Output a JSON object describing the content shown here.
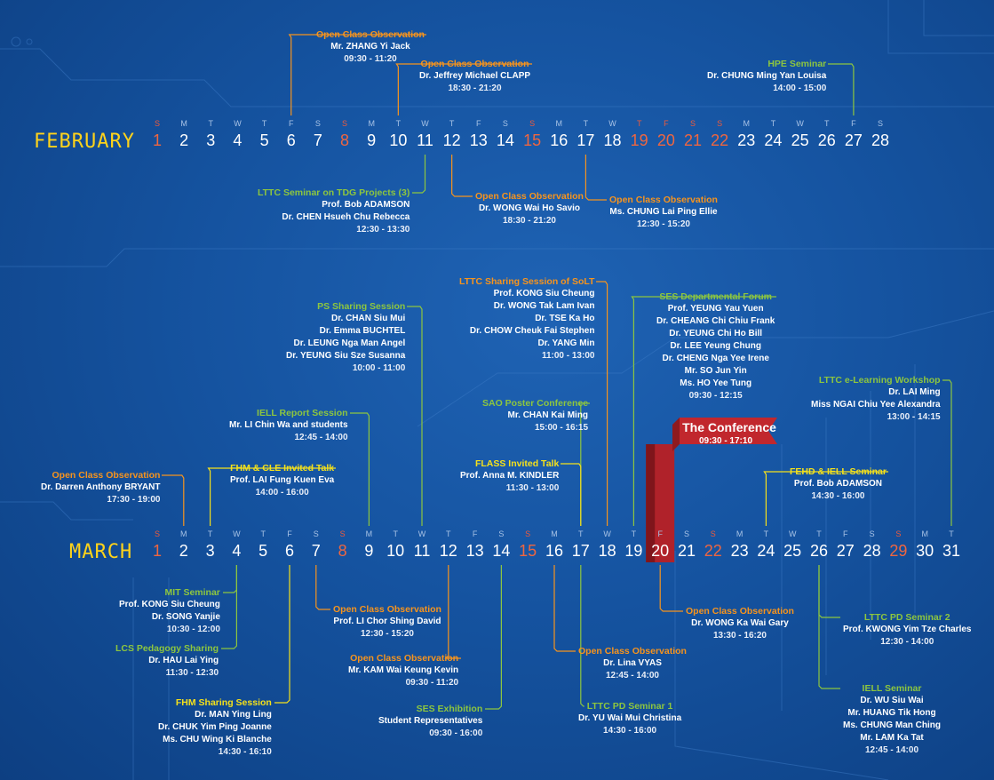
{
  "colors": {
    "orange": "#f7941d",
    "green": "#8dc63f",
    "yellow": "#f5e11b",
    "weekend": "#ef5a3a",
    "conference_red": "#c1272d"
  },
  "months": [
    {
      "name": "FEBRUARY",
      "days": [
        "1",
        "2",
        "3",
        "4",
        "5",
        "6",
        "7",
        "8",
        "9",
        "10",
        "11",
        "12",
        "13",
        "14",
        "15",
        "16",
        "17",
        "18",
        "19",
        "20",
        "21",
        "22",
        "23",
        "24",
        "25",
        "26",
        "27",
        "28"
      ],
      "weekdays": [
        "S",
        "M",
        "T",
        "W",
        "T",
        "F",
        "S",
        "S",
        "M",
        "T",
        "W",
        "T",
        "F",
        "S",
        "S",
        "M",
        "T",
        "W",
        "T",
        "F",
        "S",
        "S",
        "M",
        "T",
        "W",
        "T",
        "F",
        "S"
      ],
      "weekends": [
        1,
        8,
        15,
        19,
        20,
        21,
        22
      ]
    },
    {
      "name": "MARCH",
      "days": [
        "1",
        "2",
        "3",
        "4",
        "5",
        "6",
        "7",
        "8",
        "9",
        "10",
        "11",
        "12",
        "13",
        "14",
        "15",
        "16",
        "17",
        "18",
        "19",
        "20",
        "21",
        "22",
        "23",
        "24",
        "25",
        "26",
        "27",
        "28",
        "29",
        "30",
        "31"
      ],
      "weekdays": [
        "S",
        "M",
        "T",
        "W",
        "T",
        "F",
        "S",
        "S",
        "M",
        "T",
        "W",
        "T",
        "F",
        "S",
        "S",
        "M",
        "T",
        "W",
        "T",
        "F",
        "S",
        "S",
        "M",
        "T",
        "W",
        "T",
        "F",
        "S",
        "S",
        "M",
        "T"
      ],
      "weekends": [
        1,
        8,
        15,
        22,
        29
      ]
    }
  ],
  "conference": {
    "label": "The Conference",
    "time": "09:30 - 17:10",
    "day": "20"
  },
  "events": [
    {
      "id": "feb6",
      "color": "orange",
      "title": "Open Class Observation",
      "people": [
        "Mr. ZHANG Yi Jack"
      ],
      "time": "09:30 - 11:20"
    },
    {
      "id": "feb10",
      "color": "orange",
      "title": "Open Class Observation",
      "people": [
        "Dr. Jeffrey Michael CLAPP"
      ],
      "time": "18:30 - 21:20"
    },
    {
      "id": "feb27",
      "color": "green",
      "title": "HPE Seminar",
      "people": [
        "Dr. CHUNG Ming Yan Louisa"
      ],
      "time": "14:00 - 15:00"
    },
    {
      "id": "feb11",
      "color": "green",
      "title": "LTTC Seminar on TDG Projects (3)",
      "people": [
        "Prof. Bob ADAMSON",
        "Dr. CHEN Hsueh Chu Rebecca"
      ],
      "time": "12:30 - 13:30"
    },
    {
      "id": "feb12",
      "color": "orange",
      "title": "Open Class Observation",
      "people": [
        "Dr. WONG Wai Ho Savio"
      ],
      "time": "18:30 - 21:20"
    },
    {
      "id": "feb17",
      "color": "orange",
      "title": "Open Class Observation",
      "people": [
        "Ms. CHUNG Lai Ping Ellie"
      ],
      "time": "12:30 - 15:20"
    },
    {
      "id": "mar11ps",
      "color": "green",
      "title": "PS Sharing Session",
      "people": [
        "Dr. CHAN Siu Mui",
        "Dr. Emma BUCHTEL",
        "Dr. LEUNG Nga Man Angel",
        "Dr. YEUNG Siu Sze Susanna"
      ],
      "time": "10:00 - 11:00"
    },
    {
      "id": "mar18",
      "color": "orange",
      "title": "LTTC Sharing Session of SoLT",
      "people": [
        "Prof. KONG Siu Cheung",
        "Dr. WONG Tak Lam Ivan",
        "Dr. TSE Ka Ho",
        "Dr. CHOW Cheuk Fai Stephen",
        "Dr. YANG Min"
      ],
      "time": "11:00 - 13:00"
    },
    {
      "id": "mar19",
      "color": "green",
      "title": "SES Departmental Forum",
      "people": [
        "Prof. YEUNG Yau Yuen",
        "Dr. CHEANG Chi Chiu Frank",
        "Dr. YEUNG Chi Ho Bill",
        "Dr. LEE Yeung Chung",
        "Dr. CHENG Nga Yee Irene",
        "Mr. SO Jun Yin",
        "Ms. HO Yee Tung"
      ],
      "time": "09:30 - 12:15"
    },
    {
      "id": "mar31",
      "color": "green",
      "title": "LTTC e-Learning Workshop",
      "people": [
        "Dr. LAI Ming",
        "Miss NGAI Chiu Yee Alexandra"
      ],
      "time": "13:00 - 14:15"
    },
    {
      "id": "mar17sao",
      "color": "green",
      "title": "SAO Poster Conference",
      "people": [
        "Mr. CHAN Kai Ming"
      ],
      "time": "15:00 - 16:15"
    },
    {
      "id": "mar9",
      "color": "green",
      "title": "IELL Report Session",
      "people": [
        "Mr. LI Chin Wa and students"
      ],
      "time": "12:45 - 14:00"
    },
    {
      "id": "mar2",
      "color": "orange",
      "title": "Open Class Observation",
      "people": [
        "Dr. Darren Anthony BRYANT"
      ],
      "time": "17:30 - 19:00"
    },
    {
      "id": "mar3",
      "color": "yellow",
      "title": "FHM & CLE Invited Talk",
      "people": [
        "Prof. LAI Fung Kuen Eva"
      ],
      "time": "14:00 - 16:00"
    },
    {
      "id": "mar17",
      "color": "yellow",
      "title": "FLASS Invited Talk",
      "people": [
        "Prof. Anna M. KINDLER"
      ],
      "time": "11:30 - 13:00"
    },
    {
      "id": "mar24",
      "color": "yellow",
      "title": "FEHD & IELL Seminar",
      "people": [
        "Prof. Bob ADAMSON"
      ],
      "time": "14:30 - 16:00"
    },
    {
      "id": "mar4mit",
      "color": "green",
      "title": "MIT Seminar",
      "people": [
        "Prof. KONG Siu Cheung",
        "Dr. SONG Yanjie"
      ],
      "time": "10:30 - 12:00"
    },
    {
      "id": "mar4lcs",
      "color": "green",
      "title": "LCS Pedagogy Sharing",
      "people": [
        "Dr. HAU Lai Ying"
      ],
      "time": "11:30 - 12:30"
    },
    {
      "id": "mar6",
      "color": "yellow",
      "title": "FHM Sharing Session",
      "people": [
        "Dr. MAN Ying Ling",
        "Dr. CHUK Yim Ping Joanne",
        "Ms. CHU Wing Ki Blanche"
      ],
      "time": "14:30 - 16:10"
    },
    {
      "id": "mar7",
      "color": "orange",
      "title": "Open Class Observation",
      "people": [
        "Prof. LI Chor Shing David"
      ],
      "time": "12:30 - 15:20"
    },
    {
      "id": "mar12",
      "color": "orange",
      "title": "Open Class Observation",
      "people": [
        "Mr. KAM Wai Keung Kevin"
      ],
      "time": "09:30 - 11:20"
    },
    {
      "id": "mar14",
      "color": "green",
      "title": "SES Exhibition",
      "people": [
        "Student Representatives"
      ],
      "time": "09:30 - 16:00"
    },
    {
      "id": "mar16",
      "color": "orange",
      "title": "Open Class Observation",
      "people": [
        "Dr. Lina VYAS"
      ],
      "time": "12:45 - 14:00"
    },
    {
      "id": "mar17pd",
      "color": "green",
      "title": "LTTC PD Seminar 1",
      "people": [
        "Dr. YU Wai Mui Christina"
      ],
      "time": "14:30 - 16:00"
    },
    {
      "id": "mar20",
      "color": "orange",
      "title": "Open Class Observation",
      "people": [
        "Dr. WONG Ka Wai Gary"
      ],
      "time": "13:30 - 16:20"
    },
    {
      "id": "mar26pd",
      "color": "green",
      "title": "LTTC PD Seminar 2",
      "people": [
        "Prof. KWONG Yim Tze Charles"
      ],
      "time": "12:30 - 14:00"
    },
    {
      "id": "mar26iell",
      "color": "green",
      "title": "IELL Seminar",
      "people": [
        "Dr. WU Siu Wai",
        "Mr. HUANG Tik Hong",
        "Ms. CHUNG Man Ching",
        "Mr. LAM Ka Tat"
      ],
      "time": "12:45 - 14:00"
    }
  ]
}
